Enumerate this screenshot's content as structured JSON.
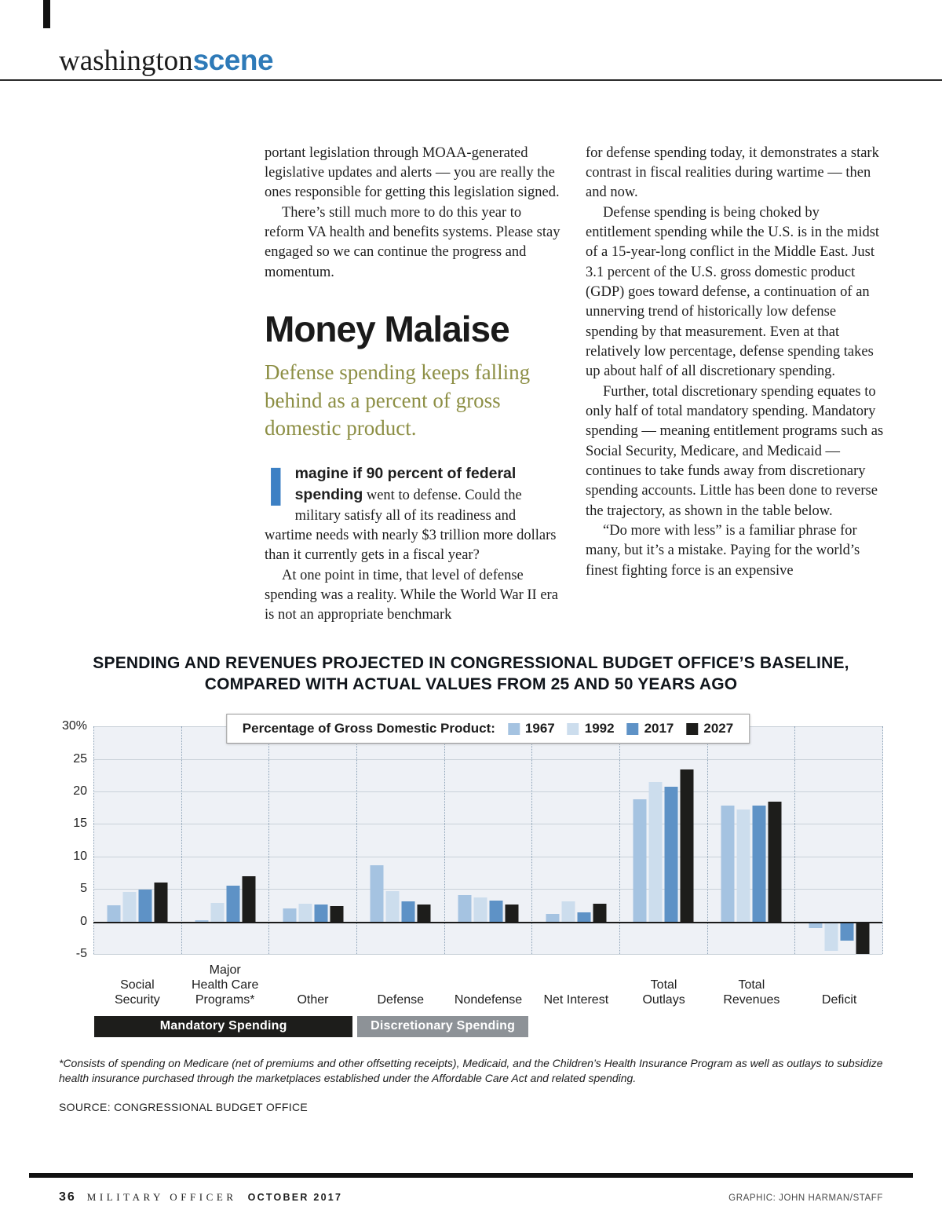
{
  "header": {
    "brand_serif": "washington",
    "brand_accent": "scene"
  },
  "article": {
    "headline": "Money Malaise",
    "subtitle": "Defense spending keeps falling behind as a percent of gross domestic product.",
    "dropcap": "I",
    "lead_bold": "magine if 90 percent of federal spending",
    "lead_rest": " went to defense. Could the military satisfy all of its readiness and wartime needs with nearly $3 trillion more dollars than it currently gets in a fiscal year?",
    "left": {
      "p1": "portant legislation through MOAA-generated legislative updates and alerts — you are really the ones responsible for getting this legislation signed.",
      "p2": "There’s still much more to do this year to reform VA health and benefits systems. Please stay engaged so we can continue the progress and momentum.",
      "p3": "At one point in time, that level of defense spending was a reality. While the World War II era is not an appropriate benchmark"
    },
    "right": {
      "p1": "for defense spending today, it demonstrates a stark contrast in fiscal realities during wartime — then and now.",
      "p2": "Defense spending is being choked by entitlement spending while the U.S. is in the midst of a 15-year-long conflict in the Middle East. Just 3.1 percent of the U.S. gross domestic product (GDP) goes toward defense, a continuation of an unnerving trend of historically low defense spending by that measurement. Even at that relatively low percentage, defense spending takes up about half of all discretionary spending.",
      "p3": "Further, total discretionary spending equates to only half of total mandatory spending. Mandatory spending — meaning entitlement programs such as Social Security, Medicare, and Medicaid — continues to take funds away from discretionary spending accounts. Little has been done to reverse the trajectory, as shown in the table below.",
      "p4": "“Do more with less” is a familiar phrase for many, but it’s a mistake. Paying for the world’s finest fighting force is an expensive"
    }
  },
  "chart_data": {
    "type": "bar",
    "title_line1": "SPENDING AND REVENUES PROJECTED IN CONGRESSIONAL BUDGET OFFICE’S BASELINE,",
    "title_line2": "COMPARED WITH ACTUAL VALUES FROM 25 AND 50 YEARS AGO",
    "legend_title": "Percentage of Gross Domestic Product:",
    "ylim": [
      -5,
      30
    ],
    "yticks": [
      30,
      25,
      20,
      15,
      10,
      5,
      0,
      -5
    ],
    "ytick_labels": [
      "30%",
      "25",
      "20",
      "15",
      "10",
      "5",
      "0",
      "-5"
    ],
    "grid": true,
    "legend_position": "top-center",
    "categories": [
      "Social Security",
      "Major Health Care Programs*",
      "Other",
      "Defense",
      "Nondefense",
      "Net Interest",
      "Total Outlays",
      "Total Revenues",
      "Deficit"
    ],
    "category_label_lines": [
      [
        "Social",
        "Security"
      ],
      [
        "Major",
        "Health Care",
        "Programs*"
      ],
      [
        "Other"
      ],
      [
        "Defense"
      ],
      [
        "Nondefense"
      ],
      [
        "Net Interest"
      ],
      [
        "Total",
        "Outlays"
      ],
      [
        "Total",
        "Revenues"
      ],
      [
        "Deficit"
      ]
    ],
    "series": [
      {
        "name": "1967",
        "color": "#a5c3e1",
        "values": [
          2.5,
          0.2,
          2.0,
          8.7,
          4.1,
          1.2,
          18.8,
          17.8,
          -1.0
        ]
      },
      {
        "name": "1992",
        "color": "#ccdded",
        "values": [
          4.5,
          2.9,
          2.8,
          4.7,
          3.7,
          3.1,
          21.5,
          17.2,
          -4.5
        ]
      },
      {
        "name": "2017",
        "color": "#5e92c6",
        "values": [
          4.9,
          5.5,
          2.6,
          3.1,
          3.2,
          1.4,
          20.7,
          17.8,
          -2.9
        ]
      },
      {
        "name": "2027",
        "color": "#1d1d1b",
        "values": [
          6.0,
          7.0,
          2.4,
          2.6,
          2.6,
          2.7,
          23.4,
          18.4,
          -5.0
        ]
      }
    ],
    "group_bands": [
      {
        "label": "Mandatory Spending",
        "from": 0,
        "to": 2,
        "color": "#1d1d1b"
      },
      {
        "label": "Discretionary Spending",
        "from": 3,
        "to": 4,
        "color": "#8d9297"
      }
    ],
    "footnote": "*Consists of spending on Medicare (net of premiums and other offsetting receipts), Medicaid, and the Children’s Health Insurance Program as well as outlays to subsidize health insurance purchased through the marketplaces established under the Affordable Care Act and related spending.",
    "source": "SOURCE: CONGRESSIONAL BUDGET OFFICE"
  },
  "footer": {
    "page_number": "36",
    "magazine": "MILITARY OFFICER",
    "issue": "OCTOBER 2017",
    "credit": "GRAPHIC: JOHN HARMAN/STAFF"
  }
}
